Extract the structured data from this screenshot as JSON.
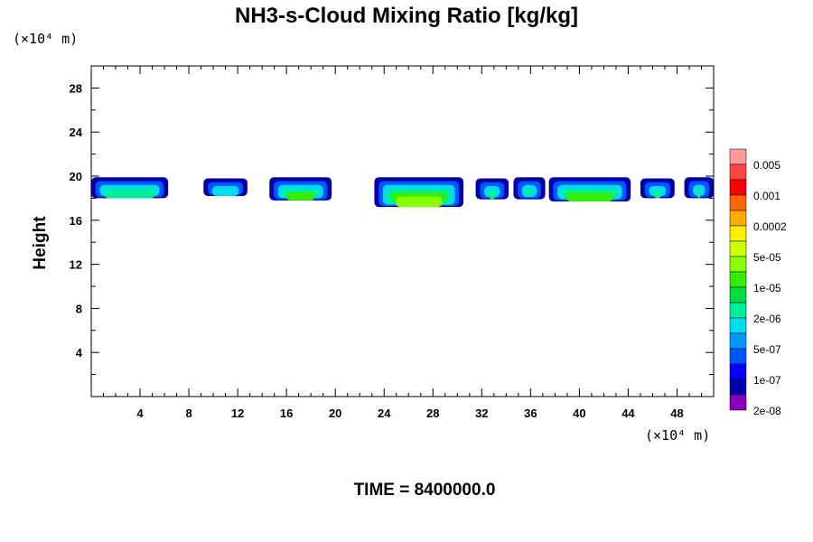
{
  "chart_data": {
    "type": "heatmap",
    "title": "NH3-s-Cloud Mixing Ratio [kg/kg]",
    "ylabel": "Height",
    "xunit": "(×10⁴ m)",
    "yunit": "(×10⁴ m)",
    "footer": "TIME = 8400000.0",
    "xlim": [
      0,
      51
    ],
    "ylim": [
      0,
      30
    ],
    "xticks": [
      "4",
      "8",
      "12",
      "16",
      "20",
      "24",
      "28",
      "32",
      "36",
      "40",
      "44",
      "48"
    ],
    "yticks": [
      "4",
      "8",
      "12",
      "16",
      "20",
      "24",
      "28"
    ],
    "xtick_values": [
      4,
      8,
      12,
      16,
      20,
      24,
      28,
      32,
      36,
      40,
      44,
      48
    ],
    "ytick_values": [
      4,
      8,
      12,
      16,
      20,
      24,
      28
    ],
    "colorbar": {
      "labels": [
        "0.005",
        "0.001",
        "0.0002",
        "5e-05",
        "1e-05",
        "2e-06",
        "5e-07",
        "1e-07",
        "2e-08"
      ],
      "colors": [
        "#ff9999",
        "#ff4444",
        "#ff0000",
        "#ff6600",
        "#ffaa00",
        "#ffee00",
        "#ccff00",
        "#88ff00",
        "#33ee00",
        "#00dd44",
        "#00ee99",
        "#00ddee",
        "#0099ff",
        "#0055ff",
        "#0000ff",
        "#0000aa",
        "#8800bb"
      ]
    },
    "cloud_segments": [
      {
        "x0": 0.0,
        "x1": 6.3,
        "bottom": 18.0,
        "top": 19.9,
        "peak": "2e-06"
      },
      {
        "x0": 9.2,
        "x1": 12.8,
        "bottom": 18.2,
        "top": 19.8,
        "peak": "5e-07"
      },
      {
        "x0": 14.6,
        "x1": 19.7,
        "bottom": 17.8,
        "top": 19.9,
        "peak": "1e-05"
      },
      {
        "x0": 23.2,
        "x1": 30.5,
        "bottom": 17.2,
        "top": 19.9,
        "peak": "5e-05"
      },
      {
        "x0": 31.5,
        "x1": 34.2,
        "bottom": 17.9,
        "top": 19.8,
        "peak": "2e-06"
      },
      {
        "x0": 34.6,
        "x1": 37.2,
        "bottom": 17.9,
        "top": 19.9,
        "peak": "1e-05"
      },
      {
        "x0": 37.5,
        "x1": 44.2,
        "bottom": 17.7,
        "top": 19.9,
        "peak": "1e-05"
      },
      {
        "x0": 45.0,
        "x1": 47.8,
        "bottom": 18.0,
        "top": 19.8,
        "peak": "2e-06"
      },
      {
        "x0": 48.6,
        "x1": 51.0,
        "bottom": 18.0,
        "top": 19.9,
        "peak": "2e-06"
      }
    ],
    "grid": false
  }
}
